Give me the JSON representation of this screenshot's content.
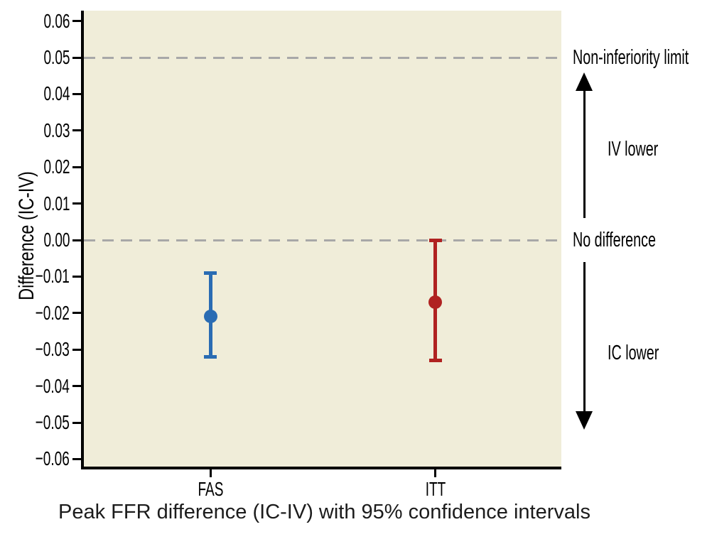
{
  "figure": {
    "kind": "forest-style point estimate plot with confidence intervals"
  },
  "chart_data": {
    "type": "scatter",
    "subtype": "point-estimates-with-95ci-error-bars",
    "title": "",
    "xlabel": "",
    "ylabel": "Difference (IC-IV)",
    "caption": "Peak FFR difference (IC-IV) with 95% confidence intervals",
    "categories": [
      "FAS",
      "ITT"
    ],
    "series": [
      {
        "name": "FAS",
        "color": "#2a6cb3",
        "mean": -0.021,
        "ci95": [
          -0.032,
          -0.009
        ]
      },
      {
        "name": "ITT",
        "color": "#b02221",
        "mean": -0.017,
        "ci95": [
          -0.033,
          0
        ]
      }
    ],
    "ylim": [
      -0.06,
      0.06
    ],
    "ytick_labels": [
      "0.06",
      "0.05",
      "0.04",
      "0.03",
      "0.02",
      "0.01",
      "0.00",
      "−0.01",
      "−0.02",
      "−0.03",
      "−0.04",
      "−0.05",
      "−0.06"
    ],
    "reference_lines": [
      {
        "value": 0.05,
        "label": "Non-inferiority limit",
        "style": "dashed",
        "color": "#a8a8a8"
      },
      {
        "value": 0,
        "label": "No difference",
        "style": "dashed",
        "color": "#a8a8a8"
      }
    ],
    "region_annotations": [
      {
        "label": "IV lower",
        "direction": "up",
        "from_value": 0.006,
        "to_value": 0.046,
        "label_value": 0.025
      },
      {
        "label": "IC lower",
        "direction": "down",
        "from_value": -0.006,
        "to_value": -0.052,
        "label_value": -0.031
      }
    ],
    "plot_background": "#f0edd9",
    "axis_color": "#000000",
    "legend_position": "none",
    "grid": false
  }
}
